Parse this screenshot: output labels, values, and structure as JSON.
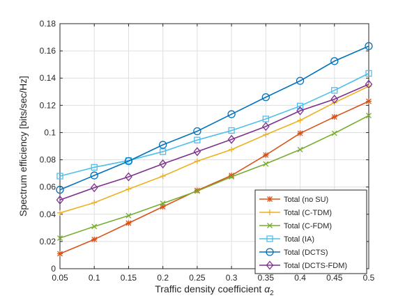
{
  "chart_data": {
    "type": "line",
    "xlabel": "Traffic density coefficient",
    "xlabel_symbol": "α",
    "xlabel_subscript": "2",
    "ylabel": "Spectrum efficiency [bits/sec/Hz]",
    "xlim": [
      0.05,
      0.5
    ],
    "ylim": [
      0,
      0.18
    ],
    "x": [
      0.05,
      0.1,
      0.15,
      0.2,
      0.25,
      0.3,
      0.35,
      0.4,
      0.45,
      0.5
    ],
    "x_tick_labels": [
      "0.05",
      "0.1",
      "0.15",
      "0.2",
      "0.25",
      "0.3",
      "0.35",
      "0.4",
      "0.45",
      "0.5"
    ],
    "y_ticks": [
      0,
      0.02,
      0.04,
      0.06,
      0.08,
      0.1,
      0.12,
      0.14,
      0.16,
      0.18
    ],
    "y_tick_labels": [
      "0",
      "0.02",
      "0.04",
      "0.06",
      "0.08",
      "0.1",
      "0.12",
      "0.14",
      "0.16",
      "0.18"
    ],
    "grid": true,
    "legend_position": "bottom-right",
    "series": [
      {
        "name": "Total (no SU)",
        "color": "#D95319",
        "marker": "asterisk",
        "values": [
          0.011,
          0.0215,
          0.0335,
          0.0455,
          0.0575,
          0.0685,
          0.0835,
          0.0995,
          0.1115,
          0.123
        ]
      },
      {
        "name": "Total (C-TDM)",
        "color": "#EDB120",
        "marker": "plus",
        "values": [
          0.041,
          0.0485,
          0.0585,
          0.068,
          0.079,
          0.0875,
          0.0985,
          0.109,
          0.122,
          0.134
        ]
      },
      {
        "name": "Total (C-FDM)",
        "color": "#77AC30",
        "marker": "x",
        "values": [
          0.0225,
          0.031,
          0.039,
          0.048,
          0.057,
          0.0675,
          0.077,
          0.0875,
          0.0995,
          0.1125
        ]
      },
      {
        "name": "Total (IA)",
        "color": "#4DBEEE",
        "marker": "square",
        "values": [
          0.068,
          0.0745,
          0.0795,
          0.086,
          0.0945,
          0.1015,
          0.11,
          0.1195,
          0.131,
          0.1435
        ]
      },
      {
        "name": "Total (DCTS)",
        "color": "#0072BD",
        "marker": "circle",
        "values": [
          0.058,
          0.0685,
          0.079,
          0.091,
          0.101,
          0.1135,
          0.126,
          0.138,
          0.1525,
          0.1635
        ]
      },
      {
        "name": "Total (DCTS-FDM)",
        "color": "#7E2F8E",
        "marker": "diamond",
        "values": [
          0.0505,
          0.0595,
          0.0675,
          0.077,
          0.086,
          0.095,
          0.1045,
          0.116,
          0.1245,
          0.1355
        ]
      }
    ]
  }
}
